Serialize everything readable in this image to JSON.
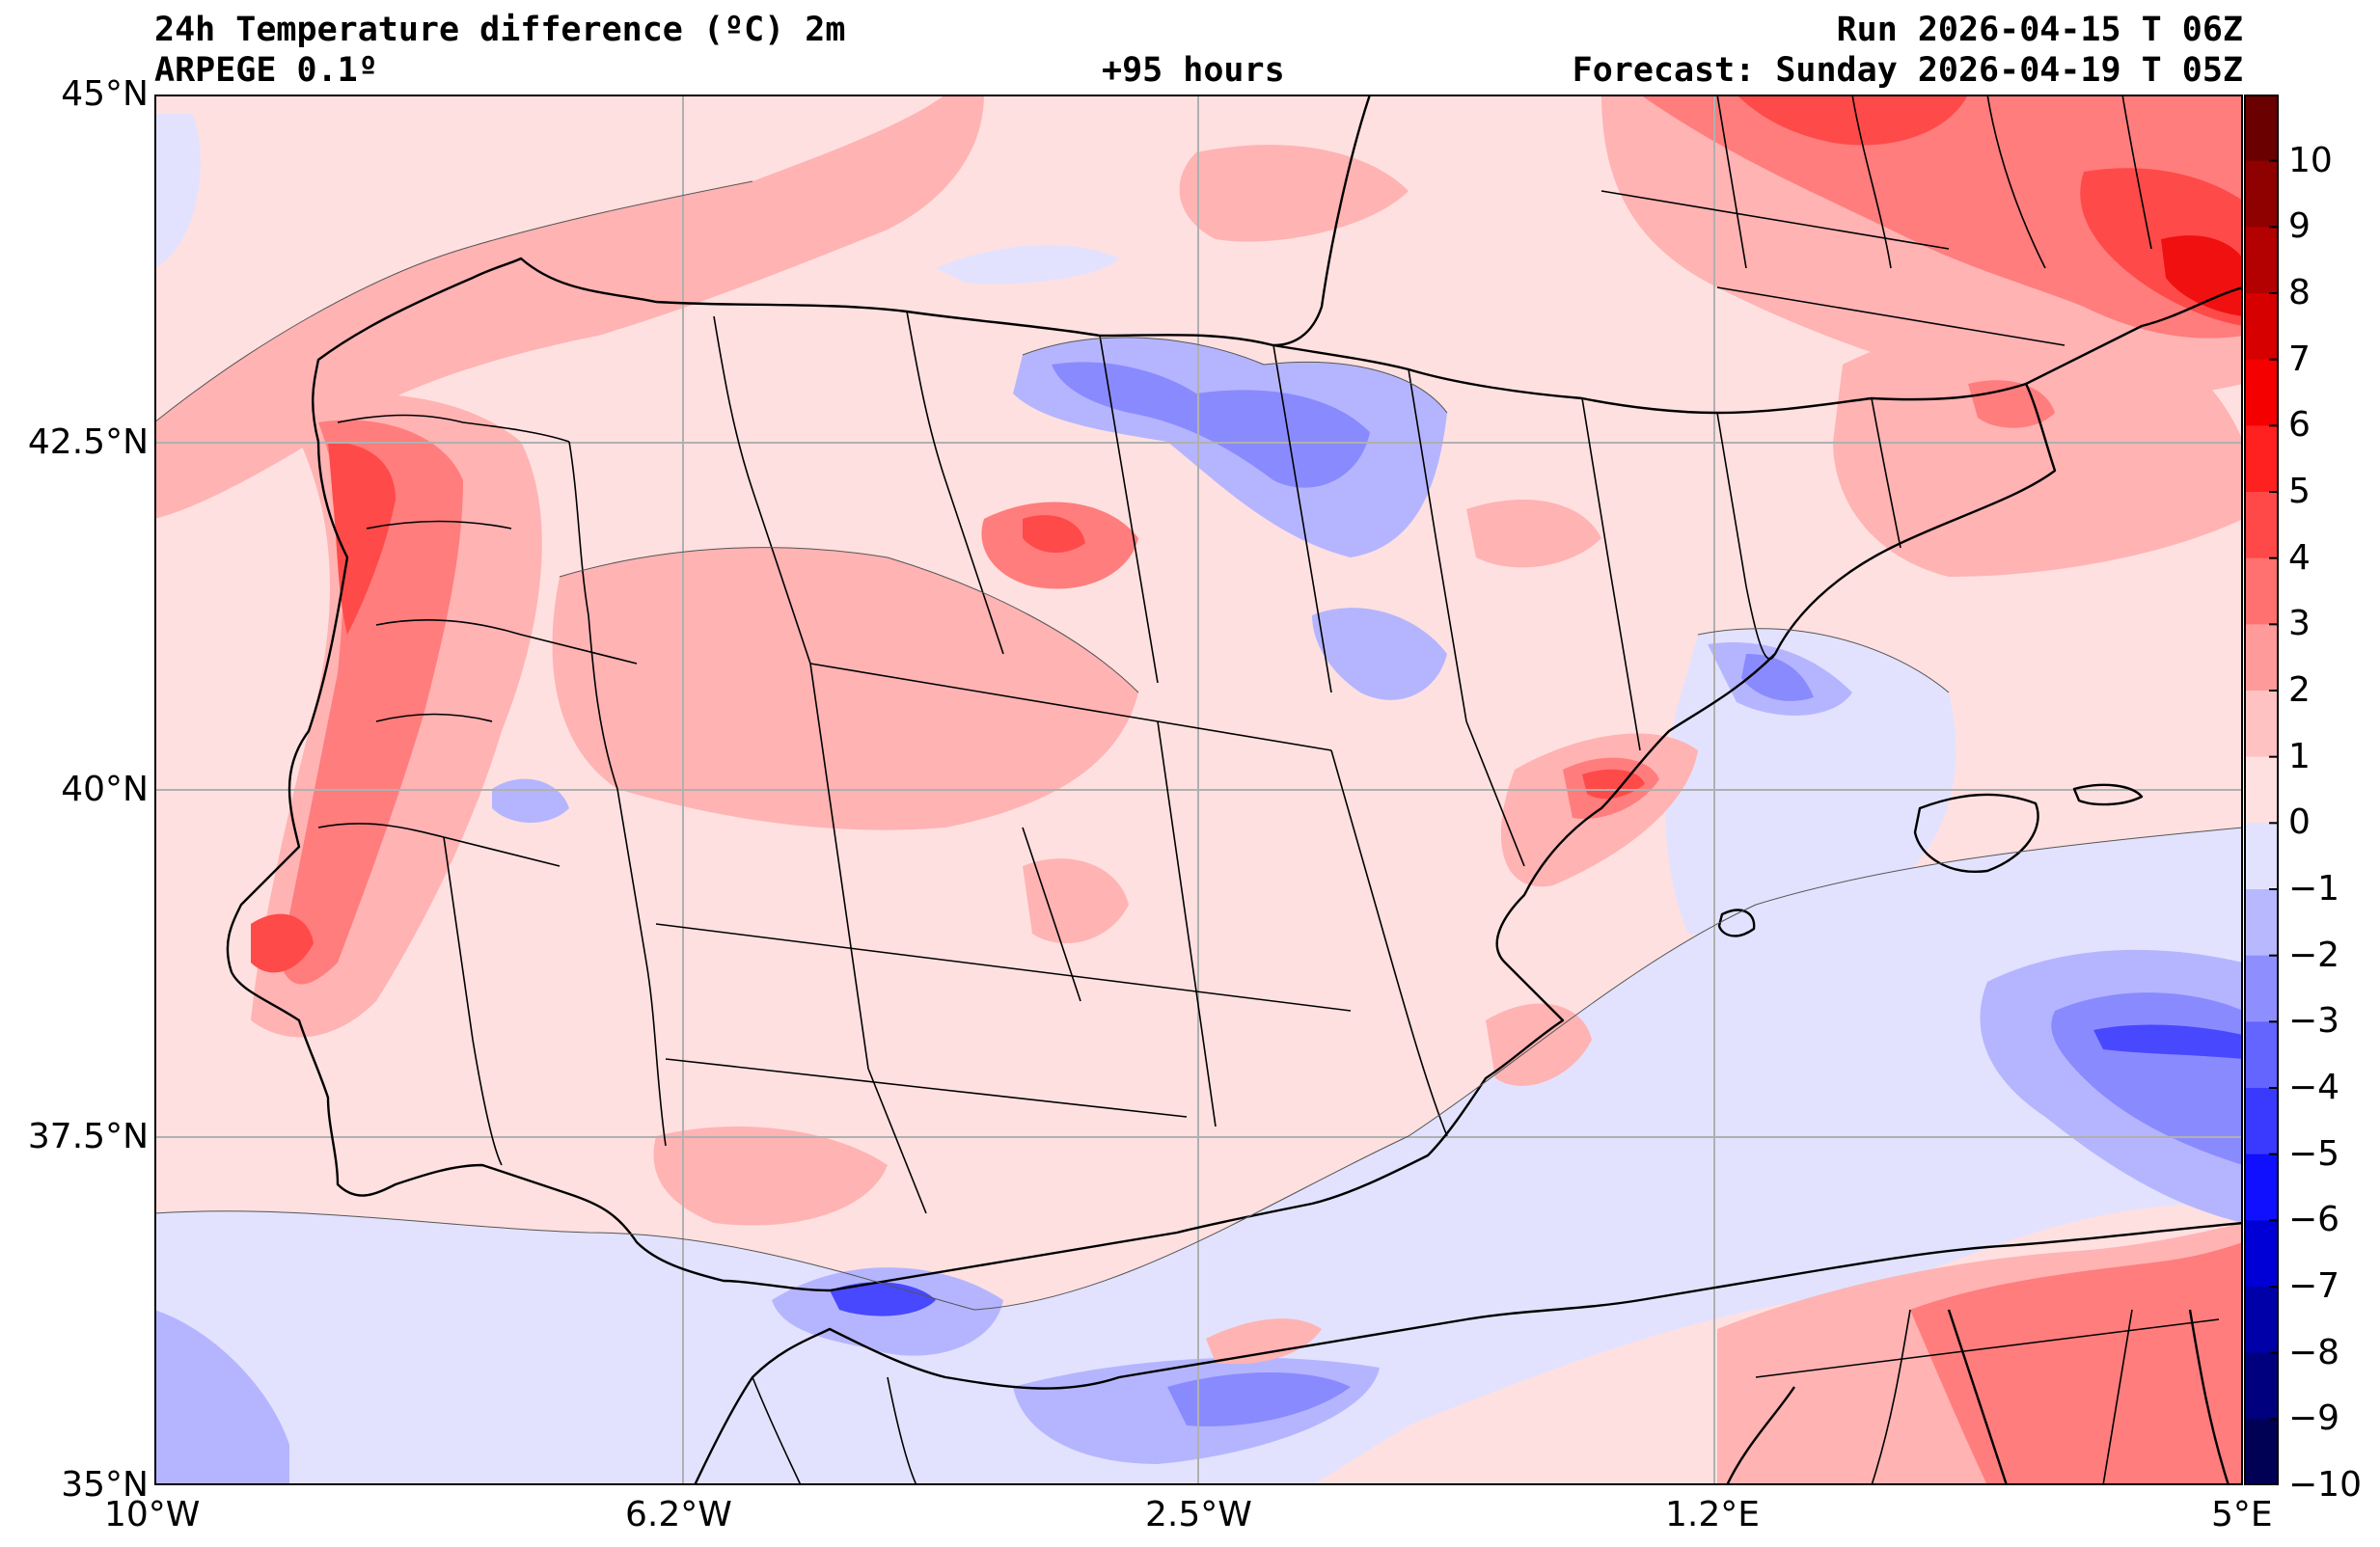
{
  "header": {
    "title": "24h Temperature difference (ºC) 2m",
    "model": "ARPEGE 0.1º",
    "lead": "+95 hours",
    "run": "Run 2026-04-15 T 06Z",
    "forecast": "Forecast: Sunday 2026-04-19 T 05Z"
  },
  "axes": {
    "lat_labels": [
      "45°N",
      "42.5°N",
      "40°N",
      "37.5°N",
      "35°N"
    ],
    "lon_labels": [
      "10°W",
      "6.2°W",
      "2.5°W",
      "1.2°E",
      "5°E"
    ],
    "lat_range": [
      35,
      45
    ],
    "lon_range": [
      -10,
      5
    ],
    "grid": true
  },
  "colorbar": {
    "ticks": [
      "10",
      "9",
      "8",
      "7",
      "6",
      "5",
      "4",
      "3",
      "2",
      "1",
      "0",
      "−1",
      "−2",
      "−3",
      "−4",
      "−5",
      "−6",
      "−7",
      "−8",
      "−9",
      "−10"
    ],
    "levels_top_to_bottom": [
      "#6b0000",
      "#8f0000",
      "#b30000",
      "#d60000",
      "#f50000",
      "#ff2020",
      "#ff4848",
      "#ff7070",
      "#ff9a9a",
      "#ffc2c2",
      "#ffe0e0",
      "#e2e2ff",
      "#b8b8ff",
      "#8e8eff",
      "#6464ff",
      "#3a3aff",
      "#1010ff",
      "#0000d6",
      "#0000a8",
      "#00007e",
      "#000055"
    ]
  },
  "map_colors": {
    "light_pink": "#ffe0e0",
    "pink": "#ffb3b3",
    "red": "#ff7d7d",
    "strong_red": "#ff4a4a",
    "deep_red": "#f01010",
    "lavender": "#e2e2ff",
    "blue": "#b5b5ff",
    "mid_blue": "#8a8aff",
    "dark_blue": "#4848ff"
  }
}
